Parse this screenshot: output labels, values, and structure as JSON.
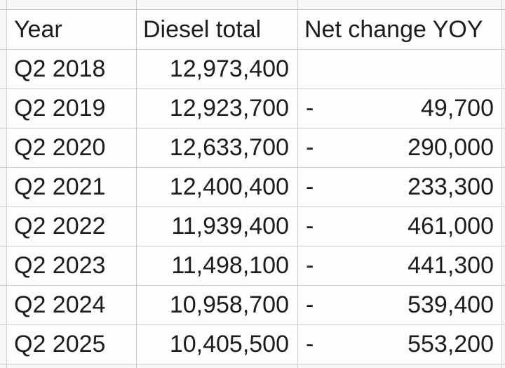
{
  "table": {
    "columns": [
      "Year",
      "Diesel total",
      "Net change YOY"
    ],
    "rows": [
      {
        "year": "Q2 2018",
        "diesel_total": "12,973,400",
        "net_change_sign": "",
        "net_change_value": ""
      },
      {
        "year": "Q2 2019",
        "diesel_total": "12,923,700",
        "net_change_sign": "-",
        "net_change_value": "49,700"
      },
      {
        "year": "Q2 2020",
        "diesel_total": "12,633,700",
        "net_change_sign": "-",
        "net_change_value": "290,000"
      },
      {
        "year": "Q2 2021",
        "diesel_total": "12,400,400",
        "net_change_sign": "-",
        "net_change_value": "233,300"
      },
      {
        "year": "Q2 2022",
        "diesel_total": "11,939,400",
        "net_change_sign": "-",
        "net_change_value": "461,000"
      },
      {
        "year": "Q2 2023",
        "diesel_total": "11,498,100",
        "net_change_sign": "-",
        "net_change_value": "441,300"
      },
      {
        "year": "Q2 2024",
        "diesel_total": "10,958,700",
        "net_change_sign": "-",
        "net_change_value": "539,400"
      },
      {
        "year": "Q2 2025",
        "diesel_total": "10,405,500",
        "net_change_sign": "-",
        "net_change_value": "553,200"
      }
    ]
  },
  "colors": {
    "grid_line": "#cdcdcd",
    "cell_bg": "#fdfdfd",
    "margin_bg": "#f7f7f7",
    "text": "#1d1d1f"
  }
}
